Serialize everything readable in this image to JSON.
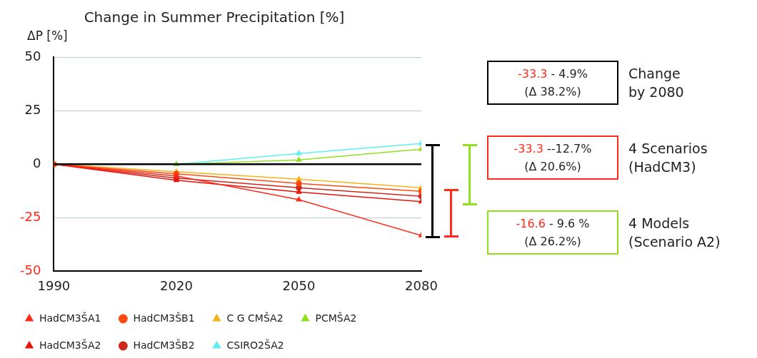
{
  "chart_data": {
    "type": "line",
    "title": "Change in Summer Precipitation [%]",
    "ylabel": "ΔP [%]",
    "x": [
      1990,
      2020,
      2050,
      2080
    ],
    "xlim": [
      1990,
      2080
    ],
    "xticks": [
      1990,
      2020,
      2050,
      2080
    ],
    "ylim": [
      -50,
      50
    ],
    "yticks": [
      -50,
      -25,
      0,
      25,
      50
    ],
    "grid": "y",
    "legend": "bottom",
    "series": [
      {
        "name": "HadCM3ŠA1",
        "color": "#ff2a1a",
        "marker": "triangle",
        "values": [
          0,
          -5.5,
          -16.6,
          -33.3
        ]
      },
      {
        "name": "HadCM3ŠB1",
        "color": "#ff4a10",
        "marker": "circle",
        "values": [
          0,
          -4.5,
          -9,
          -12.7
        ]
      },
      {
        "name": "C G CMŠA2",
        "color": "#f5b21a",
        "marker": "triangle",
        "values": [
          0,
          -3.5,
          -7,
          -11
        ]
      },
      {
        "name": "PCMŠA2",
        "color": "#90e020",
        "marker": "triangle",
        "values": [
          0,
          0,
          2,
          7
        ]
      },
      {
        "name": "HadCM3ŠA2",
        "color": "#e8140c",
        "marker": "triangle",
        "values": [
          0,
          -7.5,
          -13,
          -17.5
        ]
      },
      {
        "name": "HadCM3ŠB2",
        "color": "#d0281c",
        "marker": "circle",
        "values": [
          0,
          -6.5,
          -11,
          -15
        ]
      },
      {
        "name": "CSIRO2ŠA2",
        "color": "#5ef0f0",
        "marker": "triangle",
        "values": [
          0,
          0,
          5,
          9.6
        ]
      }
    ],
    "ref_lines": [
      {
        "axis": "y",
        "value": 0,
        "color": "#000000"
      }
    ],
    "annotations": [
      "-33.3  - 4.9%",
      "(Δ 38.2%)",
      "Change",
      "by 2080",
      "-33.3  --12.7%",
      "(Δ 20.6%)",
      "4 Scenarios",
      "(HadCM3)",
      "-16.6  - 9.6 %",
      "(Δ 26.2%)",
      "4 Models",
      "(Scenario A2)"
    ]
  }
}
